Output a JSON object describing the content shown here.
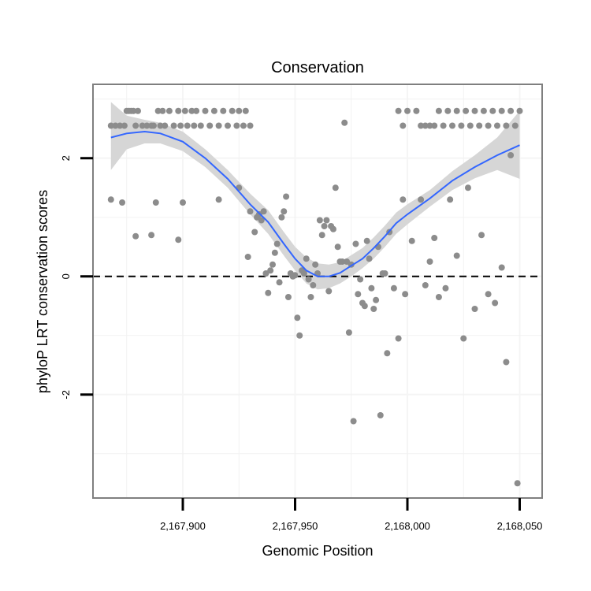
{
  "chart_data": {
    "type": "scatter",
    "title": "Conservation",
    "xlabel": "Genomic Position",
    "ylabel": "phyloP LRT conservation scores",
    "xlim": [
      2167860,
      2168060
    ],
    "ylim": [
      -3.75,
      3.25
    ],
    "x_ticks": [
      2167900,
      2167950,
      2168000,
      2168050
    ],
    "x_tick_labels": [
      "2,167,900",
      "2,167,950",
      "2,168,000",
      "2,168,050"
    ],
    "y_ticks": [
      -2,
      0,
      2
    ],
    "y_tick_labels": [
      "-2",
      "0",
      "2"
    ],
    "x_minor_gridlines": [
      2167875,
      2167925,
      2167975,
      2168025
    ],
    "y_minor_gridlines": [
      -3,
      -1,
      1,
      3
    ],
    "reference_line": {
      "y": 0,
      "style": "dashed",
      "color": "#000000"
    },
    "colors": {
      "points": "#8c8c8c",
      "smooth_line": "#3366ff",
      "confidence_band": "#d6d6d6",
      "panel_border": "#7f7f7f",
      "grid": "#f2f2f2"
    },
    "points": {
      "x": [
        2167868,
        2167873,
        2167879,
        2167886,
        2167888,
        2167898,
        2167900,
        2167916,
        2167925,
        2167929,
        2167930,
        2167932,
        2167933,
        2167934,
        2167935,
        2167936,
        2167937,
        2167938,
        2167939,
        2167940,
        2167941,
        2167942,
        2167943,
        2167944,
        2167945,
        2167946,
        2167947,
        2167948,
        2167949,
        2167950,
        2167951,
        2167952,
        2167953,
        2167954,
        2167955,
        2167956,
        2167957,
        2167958,
        2167959,
        2167960,
        2167961,
        2167962,
        2167963,
        2167964,
        2167965,
        2167966,
        2167967,
        2167968,
        2167969,
        2167970,
        2167971,
        2167972,
        2167973,
        2167974,
        2167975,
        2167976,
        2167977,
        2167978,
        2167979,
        2167980,
        2167981,
        2167982,
        2167983,
        2167984,
        2167985,
        2167986,
        2167987,
        2167988,
        2167989,
        2167990,
        2167991,
        2167992,
        2167994,
        2167996,
        2167998,
        2167999,
        2168002,
        2168006,
        2168008,
        2168010,
        2168012,
        2168014,
        2168017,
        2168019,
        2168022,
        2168025,
        2168027,
        2168030,
        2168033,
        2168036,
        2168039,
        2168042,
        2168044,
        2168046,
        2168049
      ],
      "y": [
        1.3,
        1.25,
        0.68,
        0.7,
        1.25,
        0.62,
        1.25,
        1.3,
        1.5,
        0.33,
        1.1,
        0.75,
        1.0,
        1.05,
        0.95,
        1.1,
        0.05,
        -0.28,
        0.1,
        0.2,
        0.4,
        0.55,
        -0.1,
        1.0,
        1.1,
        1.35,
        -0.35,
        0.05,
        0.0,
        0.02,
        -0.7,
        -1.0,
        0.1,
        0.05,
        0.3,
        -0.05,
        -0.35,
        -0.15,
        0.2,
        0.05,
        0.95,
        0.7,
        0.85,
        0.95,
        -0.25,
        0.85,
        0.8,
        1.5,
        0.5,
        0.25,
        0.25,
        2.6,
        0.25,
        -0.95,
        0.2,
        -2.45,
        0.55,
        -0.3,
        -0.05,
        -0.45,
        -0.5,
        0.6,
        0.3,
        -0.2,
        -0.55,
        -0.4,
        0.5,
        -2.35,
        0.05,
        0.05,
        -1.3,
        0.75,
        -0.2,
        -1.05,
        1.3,
        -0.3,
        0.6,
        1.3,
        -0.15,
        0.25,
        0.65,
        -0.35,
        -0.2,
        1.3,
        0.35,
        -1.05,
        1.5,
        -0.55,
        0.7,
        -0.3,
        -0.45,
        0.15,
        -1.45,
        2.05,
        -3.5
      ]
    },
    "saturated_points": {
      "x": [
        2167868,
        2167870,
        2167872,
        2167874,
        2167875,
        2167876,
        2167877,
        2167878,
        2167879,
        2167880,
        2167882,
        2167884,
        2167886,
        2167887,
        2167889,
        2167890,
        2167891,
        2167892,
        2167894,
        2167896,
        2167898,
        2167899,
        2167901,
        2167902,
        2167904,
        2167905,
        2167906,
        2167908,
        2167910,
        2167912,
        2167914,
        2167916,
        2167918,
        2167920,
        2167922,
        2167924,
        2167925,
        2167927,
        2167928,
        2167930,
        2167996,
        2167998,
        2168000,
        2168004,
        2168006,
        2168008,
        2168010,
        2168012,
        2168014,
        2168016,
        2168018,
        2168020,
        2168022,
        2168024,
        2168026,
        2168028,
        2168030,
        2168032,
        2168034,
        2168036,
        2168038,
        2168040,
        2168042,
        2168044,
        2168046,
        2168048,
        2168050
      ],
      "y": [
        2.55,
        2.55,
        2.55,
        2.55,
        2.8,
        2.8,
        2.8,
        2.8,
        2.55,
        2.8,
        2.55,
        2.55,
        2.55,
        2.55,
        2.8,
        2.55,
        2.8,
        2.55,
        2.8,
        2.55,
        2.8,
        2.55,
        2.8,
        2.55,
        2.8,
        2.55,
        2.8,
        2.55,
        2.8,
        2.55,
        2.8,
        2.55,
        2.8,
        2.55,
        2.8,
        2.55,
        2.8,
        2.55,
        2.8,
        2.55,
        2.8,
        2.55,
        2.8,
        2.8,
        2.55,
        2.55,
        2.55,
        2.55,
        2.8,
        2.55,
        2.8,
        2.55,
        2.8,
        2.55,
        2.8,
        2.55,
        2.8,
        2.55,
        2.8,
        2.55,
        2.8,
        2.55,
        2.8,
        2.55,
        2.8,
        2.55,
        2.8
      ]
    },
    "smooth": {
      "x": [
        2167868,
        2167875,
        2167883,
        2167890,
        2167900,
        2167910,
        2167920,
        2167930,
        2167938,
        2167945,
        2167950,
        2167955,
        2167960,
        2167965,
        2167970,
        2167975,
        2167980,
        2167985,
        2167990,
        2167995,
        2168000,
        2168010,
        2168020,
        2168030,
        2168040,
        2168050
      ],
      "y": [
        2.35,
        2.42,
        2.45,
        2.42,
        2.28,
        2.0,
        1.65,
        1.22,
        0.92,
        0.55,
        0.3,
        0.1,
        0.0,
        0.0,
        0.06,
        0.18,
        0.3,
        0.48,
        0.68,
        0.9,
        1.05,
        1.32,
        1.62,
        1.85,
        2.05,
        2.22
      ],
      "lower": [
        1.8,
        2.15,
        2.25,
        2.25,
        2.12,
        1.85,
        1.5,
        1.05,
        0.72,
        0.35,
        0.1,
        -0.12,
        -0.22,
        -0.2,
        -0.12,
        0.0,
        0.14,
        0.3,
        0.5,
        0.72,
        0.88,
        1.18,
        1.46,
        1.66,
        1.8,
        1.65
      ],
      "upper": [
        2.95,
        2.72,
        2.65,
        2.6,
        2.45,
        2.15,
        1.8,
        1.4,
        1.12,
        0.75,
        0.5,
        0.32,
        0.22,
        0.2,
        0.24,
        0.36,
        0.48,
        0.66,
        0.86,
        1.08,
        1.22,
        1.46,
        1.78,
        2.05,
        2.35,
        2.8
      ]
    }
  }
}
